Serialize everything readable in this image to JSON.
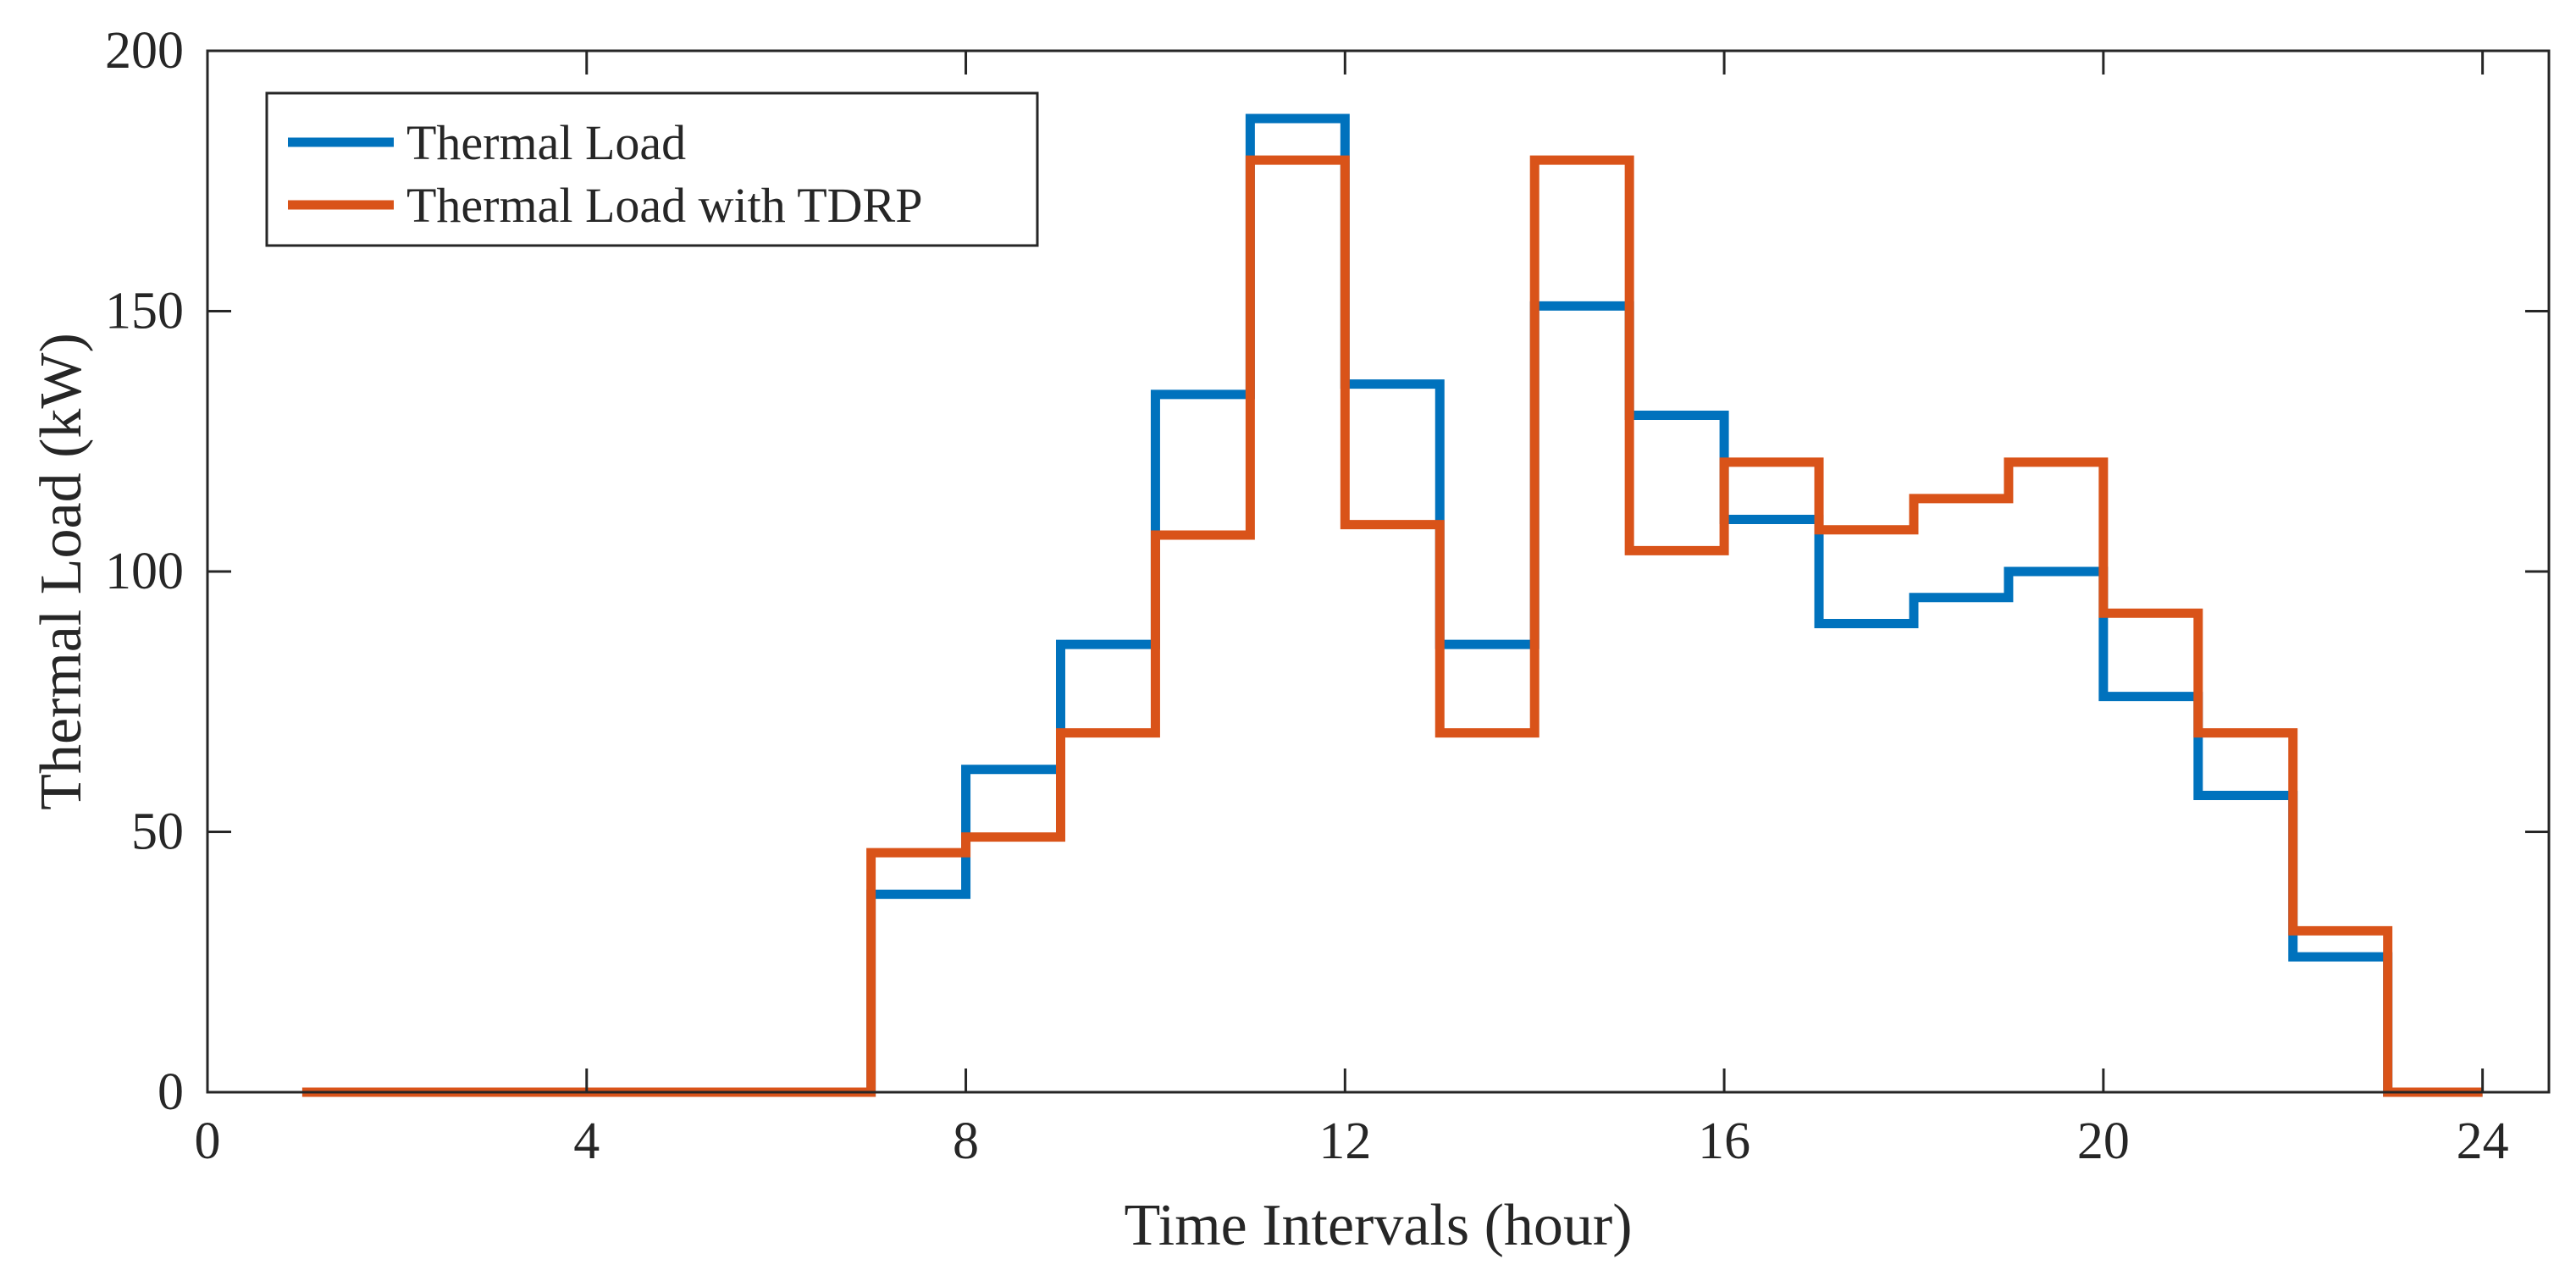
{
  "chart_data": {
    "type": "line",
    "step": "post",
    "title": "",
    "xlabel": "Time Intervals (hour)",
    "ylabel": "Thermal Load (kW)",
    "xlim": [
      0,
      24.7
    ],
    "ylim": [
      0,
      200
    ],
    "xticks": [
      0,
      4,
      8,
      12,
      16,
      20,
      24
    ],
    "yticks": [
      0,
      50,
      100,
      150,
      200
    ],
    "grid": false,
    "legend_position": "top-left",
    "x": [
      1,
      2,
      3,
      4,
      5,
      6,
      7,
      8,
      9,
      10,
      11,
      12,
      13,
      14,
      15,
      16,
      17,
      18,
      19,
      20,
      21,
      22,
      23,
      24
    ],
    "series": [
      {
        "name": "Thermal Load",
        "color": "#0072BD",
        "values": [
          0,
          0,
          0,
          0,
          0,
          0,
          38,
          62,
          86,
          134,
          187,
          136,
          86,
          151,
          130,
          110,
          90,
          95,
          100,
          76,
          57,
          26,
          0,
          0
        ]
      },
      {
        "name": "Thermal Load with TDRP",
        "color": "#D95319",
        "values": [
          0,
          0,
          0,
          0,
          0,
          0,
          46,
          49,
          69,
          107,
          179,
          109,
          69,
          179,
          104,
          121,
          108,
          114,
          121,
          92,
          69,
          31,
          0,
          0
        ]
      }
    ]
  }
}
